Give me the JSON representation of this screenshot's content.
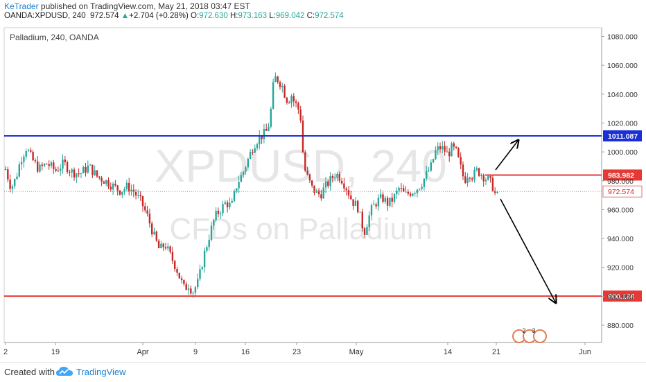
{
  "header": {
    "author": "KeTrader",
    "published_text": "published on TradingView.com, May 21, 2018 03:47 EST",
    "symbol": "OANDA:XPDUSD, 240",
    "price": "972.574",
    "change": "+2.704 (+0.28%)",
    "open_label": "O:",
    "open": "972.630",
    "high_label": "H:",
    "high": "973.163",
    "low_label": "L:",
    "low": "969.042",
    "close_label": "C:",
    "close": "972.574"
  },
  "footer": {
    "created_with": "Created with",
    "brand": "TradingView"
  },
  "colors": {
    "up": "#26a69a",
    "down": "#c62828",
    "resistance": "#1a2fd6",
    "support": "#e53935",
    "accent": "#1b7fd1"
  },
  "chart_data": {
    "type": "candlestick",
    "title": "Palladium, 240, OANDA",
    "watermark_symbol": "XPDUSD, 240",
    "watermark_desc": "CFDs on Palladium",
    "xticks": [
      "2",
      "19",
      "Apr",
      "9",
      "16",
      "23",
      "May",
      "14",
      "21",
      "Jun"
    ],
    "ylim": [
      868,
      1086
    ],
    "yticks": [
      "1080.000",
      "1060.000",
      "1040.000",
      "1020.000",
      "1000.000",
      "980.000",
      "960.000",
      "940.000",
      "920.000",
      "900.000",
      "880.000"
    ],
    "levels": [
      {
        "name": "resistance",
        "value": 1011.087,
        "label": "1011.087"
      },
      {
        "name": "upper",
        "value": 983.982,
        "label": "983.982"
      },
      {
        "name": "support",
        "value": 900.138,
        "label": "900.138"
      }
    ],
    "last_price": 972.574,
    "last_price_label": "972.574",
    "close_path": [
      [
        0,
        988
      ],
      [
        8,
        975
      ],
      [
        15,
        982
      ],
      [
        22,
        995
      ],
      [
        30,
        1003
      ],
      [
        38,
        995
      ],
      [
        48,
        988
      ],
      [
        60,
        992
      ],
      [
        72,
        987
      ],
      [
        84,
        992
      ],
      [
        96,
        986
      ],
      [
        108,
        985
      ],
      [
        120,
        990
      ],
      [
        132,
        983
      ],
      [
        144,
        980
      ],
      [
        156,
        976
      ],
      [
        166,
        973
      ],
      [
        176,
        976
      ],
      [
        186,
        972
      ],
      [
        196,
        965
      ],
      [
        205,
        955
      ],
      [
        214,
        942
      ],
      [
        222,
        932
      ],
      [
        230,
        936
      ],
      [
        238,
        928
      ],
      [
        246,
        920
      ],
      [
        252,
        912
      ],
      [
        258,
        905
      ],
      [
        264,
        908
      ],
      [
        270,
        903
      ],
      [
        278,
        910
      ],
      [
        286,
        928
      ],
      [
        294,
        942
      ],
      [
        302,
        955
      ],
      [
        310,
        960
      ],
      [
        318,
        965
      ],
      [
        326,
        962
      ],
      [
        334,
        978
      ],
      [
        342,
        985
      ],
      [
        350,
        995
      ],
      [
        358,
        1005
      ],
      [
        366,
        1010
      ],
      [
        372,
        1012
      ],
      [
        378,
        1015
      ],
      [
        382,
        1025
      ],
      [
        386,
        1045
      ],
      [
        390,
        1052
      ],
      [
        396,
        1048
      ],
      [
        400,
        1045
      ],
      [
        404,
        1038
      ],
      [
        408,
        1035
      ],
      [
        412,
        1040
      ],
      [
        416,
        1035
      ],
      [
        420,
        1032
      ],
      [
        424,
        1028
      ],
      [
        427,
        1020
      ],
      [
        430,
        990
      ],
      [
        436,
        982
      ],
      [
        442,
        975
      ],
      [
        448,
        972
      ],
      [
        454,
        970
      ],
      [
        460,
        975
      ],
      [
        468,
        980
      ],
      [
        476,
        985
      ],
      [
        484,
        982
      ],
      [
        492,
        975
      ],
      [
        500,
        966
      ],
      [
        508,
        962
      ],
      [
        514,
        950
      ],
      [
        518,
        945
      ],
      [
        522,
        952
      ],
      [
        528,
        960
      ],
      [
        536,
        966
      ],
      [
        544,
        968
      ],
      [
        552,
        964
      ],
      [
        560,
        968
      ],
      [
        568,
        975
      ],
      [
        576,
        970
      ],
      [
        584,
        972
      ],
      [
        592,
        974
      ],
      [
        600,
        978
      ],
      [
        608,
        985
      ],
      [
        614,
        990
      ],
      [
        620,
        1000
      ],
      [
        626,
        1003
      ],
      [
        632,
        1002
      ],
      [
        638,
        998
      ],
      [
        644,
        1003
      ],
      [
        650,
        1000
      ],
      [
        656,
        990
      ],
      [
        662,
        980
      ],
      [
        668,
        986
      ],
      [
        674,
        983
      ],
      [
        680,
        987
      ],
      [
        686,
        985
      ],
      [
        692,
        982
      ],
      [
        698,
        980
      ],
      [
        704,
        975
      ],
      [
        708,
        968
      ],
      [
        712,
        972
      ]
    ],
    "arrows": [
      {
        "from": [
          715,
          245
        ],
        "to": [
          748,
          202
        ]
      },
      {
        "from": [
          722,
          287
        ],
        "to": [
          802,
          437
        ]
      }
    ]
  }
}
